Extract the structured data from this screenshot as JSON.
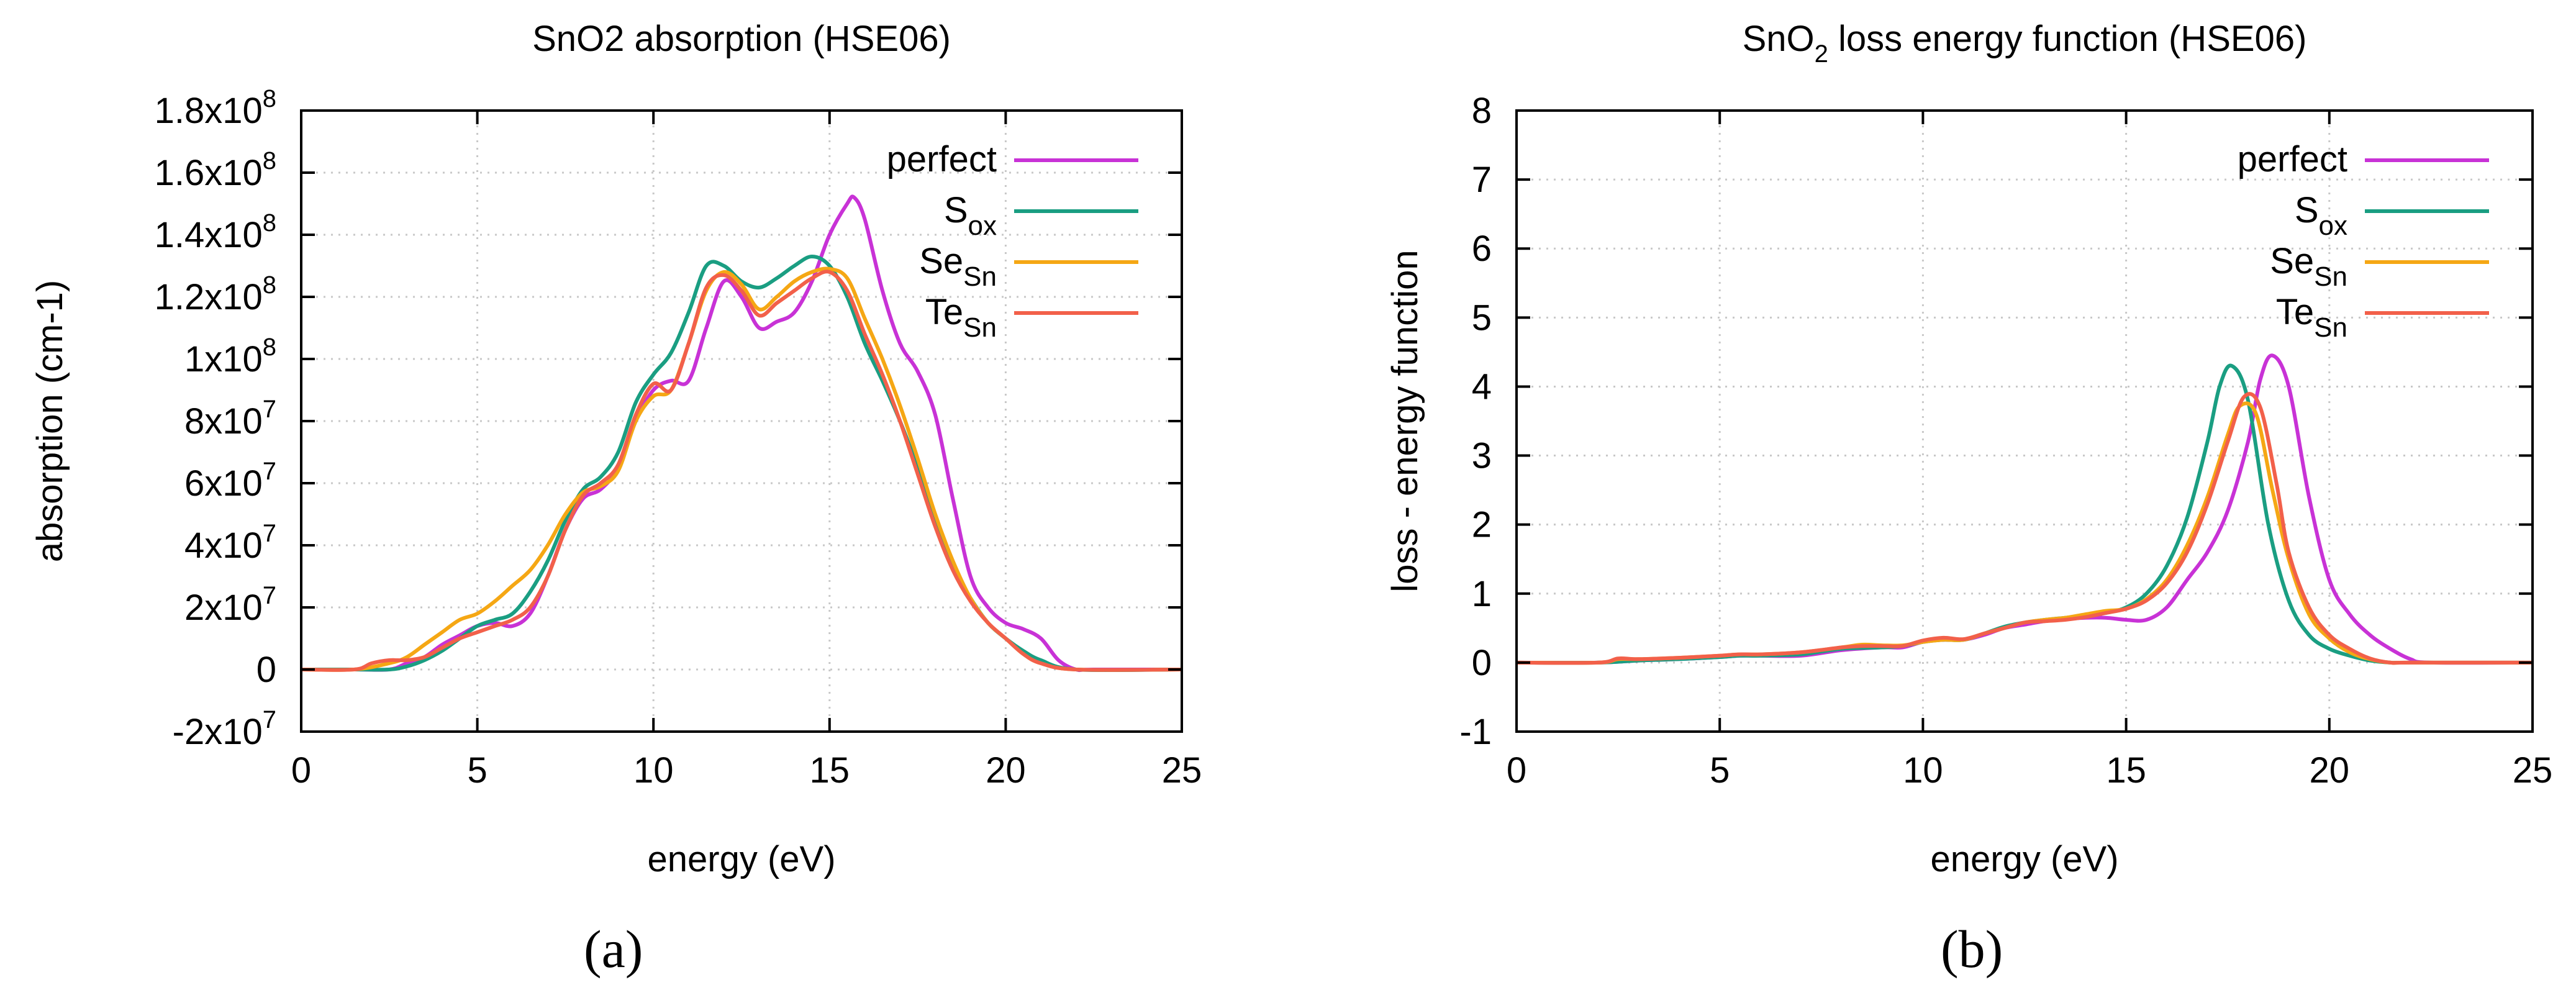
{
  "figure": {
    "panel_labels": [
      "(a)",
      "(b)"
    ]
  },
  "chart_data": [
    {
      "type": "line",
      "title": "SnO2 absorption (HSE06)",
      "xlabel": "energy (eV)",
      "ylabel": "absorption (cm-1)",
      "xlim": [
        0,
        25
      ],
      "ylim": [
        -20000000.0,
        180000000.0
      ],
      "x_ticks": [
        0,
        5,
        10,
        15,
        20,
        25
      ],
      "y_ticks": [
        {
          "value": -20000000.0,
          "mant": "-2x10",
          "exp": "7"
        },
        {
          "value": 0,
          "mant": "0",
          "exp": ""
        },
        {
          "value": 20000000.0,
          "mant": "2x10",
          "exp": "7"
        },
        {
          "value": 40000000.0,
          "mant": "4x10",
          "exp": "7"
        },
        {
          "value": 60000000.0,
          "mant": "6x10",
          "exp": "7"
        },
        {
          "value": 80000000.0,
          "mant": "8x10",
          "exp": "7"
        },
        {
          "value": 100000000.0,
          "mant": "1x10",
          "exp": "8"
        },
        {
          "value": 120000000.0,
          "mant": "1.2x10",
          "exp": "8"
        },
        {
          "value": 140000000.0,
          "mant": "1.4x10",
          "exp": "8"
        },
        {
          "value": 160000000.0,
          "mant": "1.6x10",
          "exp": "8"
        },
        {
          "value": 180000000.0,
          "mant": "1.8x10",
          "exp": "8"
        }
      ],
      "grid": true,
      "legend_position": "top-right",
      "series": [
        {
          "name": "perfect",
          "base": "perfect",
          "sub": "",
          "color": "#c832d6",
          "x": [
            0,
            1.5,
            2.5,
            3,
            3.5,
            4,
            4.5,
            5,
            5.5,
            6,
            6.5,
            7,
            7.5,
            8,
            8.5,
            9,
            9.5,
            10,
            10.5,
            11,
            11.5,
            12,
            12.5,
            13,
            13.5,
            14,
            14.5,
            15,
            15.5,
            15.7,
            16,
            16.5,
            17,
            17.5,
            18,
            18.5,
            19,
            19.5,
            20,
            20.5,
            21,
            21.5,
            22,
            22.5,
            25
          ],
          "y": [
            0,
            0,
            0,
            2000000.0,
            4000000.0,
            8000000.0,
            11000000.0,
            14000000.0,
            15000000.0,
            14000000.0,
            18000000.0,
            30000000.0,
            45000000.0,
            55000000.0,
            58000000.0,
            65000000.0,
            80000000.0,
            90000000.0,
            93000000.0,
            93000000.0,
            110000000.0,
            125000000.0,
            120000000.0,
            110000000.0,
            112000000.0,
            115000000.0,
            125000000.0,
            140000000.0,
            150000000.0,
            152000000.0,
            145000000.0,
            122000000.0,
            105000000.0,
            96000000.0,
            82000000.0,
            55000000.0,
            30000000.0,
            20000000.0,
            15000000.0,
            13000000.0,
            10000000.0,
            3000000.0,
            0,
            0,
            0
          ]
        },
        {
          "name": "Sox",
          "base": "S",
          "sub": "ox",
          "color": "#1a9e82",
          "x": [
            0,
            1.5,
            2.5,
            3,
            3.5,
            4,
            4.5,
            5,
            5.5,
            6,
            6.5,
            7,
            7.5,
            8,
            8.5,
            9,
            9.5,
            10,
            10.5,
            11,
            11.5,
            12,
            12.5,
            13,
            13.5,
            14,
            14.5,
            15,
            15.5,
            16,
            16.5,
            17,
            17.5,
            18,
            18.5,
            19,
            19.5,
            20,
            20.5,
            21,
            22,
            25
          ],
          "y": [
            0,
            0,
            0,
            1000000.0,
            3000000.0,
            6000000.0,
            10000000.0,
            14000000.0,
            16000000.0,
            18000000.0,
            25000000.0,
            35000000.0,
            48000000.0,
            58000000.0,
            62000000.0,
            70000000.0,
            86000000.0,
            95000000.0,
            102000000.0,
            115000000.0,
            130000000.0,
            130000000.0,
            125000000.0,
            123000000.0,
            126000000.0,
            130000000.0,
            133000000.0,
            130000000.0,
            120000000.0,
            105000000.0,
            93000000.0,
            80000000.0,
            65000000.0,
            48000000.0,
            33000000.0,
            23000000.0,
            15000000.0,
            10000000.0,
            6000000.0,
            3000000.0,
            0,
            0
          ]
        },
        {
          "name": "SeSn",
          "base": "Se",
          "sub": "Sn",
          "color": "#f5a714",
          "x": [
            0,
            1.5,
            2.5,
            3,
            3.5,
            4,
            4.5,
            5,
            5.5,
            6,
            6.5,
            7,
            7.5,
            8,
            8.5,
            9,
            9.5,
            10,
            10.5,
            11,
            11.5,
            12,
            12.5,
            13,
            13.5,
            14,
            14.5,
            15,
            15.5,
            16,
            16.5,
            17,
            17.5,
            18,
            18.5,
            19,
            19.5,
            20,
            20.5,
            21,
            22,
            25
          ],
          "y": [
            0,
            0,
            2000000.0,
            4000000.0,
            8000000.0,
            12000000.0,
            16000000.0,
            18000000.0,
            22000000.0,
            27000000.0,
            32000000.0,
            40000000.0,
            50000000.0,
            57000000.0,
            59000000.0,
            64000000.0,
            80000000.0,
            88000000.0,
            90000000.0,
            105000000.0,
            122000000.0,
            128000000.0,
            124000000.0,
            116000000.0,
            120000000.0,
            125000000.0,
            128000000.0,
            129000000.0,
            126000000.0,
            113000000.0,
            100000000.0,
            85000000.0,
            68000000.0,
            50000000.0,
            35000000.0,
            23000000.0,
            15000000.0,
            10000000.0,
            5000000.0,
            2000000.0,
            0,
            0
          ]
        },
        {
          "name": "TeSn",
          "base": "Te",
          "sub": "Sn",
          "color": "#f2604a",
          "x": [
            0,
            1.5,
            2,
            2.5,
            3,
            3.5,
            4,
            4.5,
            5,
            5.5,
            6,
            6.5,
            7,
            7.5,
            8,
            8.5,
            9,
            9.5,
            10,
            10.5,
            11,
            11.5,
            12,
            12.5,
            13,
            13.5,
            14,
            14.5,
            15,
            15.5,
            16,
            16.5,
            17,
            17.5,
            18,
            18.5,
            19,
            19.5,
            20,
            20.5,
            21,
            22,
            25
          ],
          "y": [
            0,
            0,
            2000000.0,
            3000000.0,
            3000000.0,
            4000000.0,
            7000000.0,
            10000000.0,
            12000000.0,
            14000000.0,
            16000000.0,
            20000000.0,
            30000000.0,
            45000000.0,
            56000000.0,
            60000000.0,
            66000000.0,
            82000000.0,
            92000000.0,
            90000000.0,
            105000000.0,
            123000000.0,
            127000000.0,
            122000000.0,
            114000000.0,
            118000000.0,
            122000000.0,
            126000000.0,
            128000000.0,
            122000000.0,
            108000000.0,
            95000000.0,
            80000000.0,
            63000000.0,
            46000000.0,
            32000000.0,
            22000000.0,
            15000000.0,
            10000000.0,
            5000000.0,
            2000000.0,
            0,
            0
          ]
        }
      ]
    },
    {
      "type": "line",
      "title_base": "SnO",
      "title_sub": "2",
      "title_rest": " loss energy function (HSE06)",
      "xlabel": "energy (eV)",
      "ylabel": "loss - energy function",
      "xlim": [
        0,
        25
      ],
      "ylim": [
        -1,
        8
      ],
      "x_ticks": [
        0,
        5,
        10,
        15,
        20,
        25
      ],
      "y_ticks": [
        -1,
        0,
        1,
        2,
        3,
        4,
        5,
        6,
        7,
        8
      ],
      "grid": true,
      "legend_position": "top-right",
      "series": [
        {
          "name": "perfect",
          "base": "perfect",
          "sub": "",
          "color": "#c832d6",
          "x": [
            0,
            2,
            3,
            4,
            5,
            5.5,
            6,
            7,
            8,
            9,
            9.5,
            10,
            10.5,
            11,
            11.5,
            12,
            12.5,
            13,
            13.5,
            14,
            14.5,
            15,
            15.5,
            16,
            16.5,
            17,
            17.5,
            18,
            18.3,
            18.6,
            19,
            19.5,
            20,
            20.5,
            21,
            21.5,
            22,
            22.5,
            25
          ],
          "y": [
            0,
            0,
            0.03,
            0.05,
            0.08,
            0.1,
            0.1,
            0.1,
            0.18,
            0.22,
            0.22,
            0.3,
            0.33,
            0.33,
            0.4,
            0.5,
            0.55,
            0.6,
            0.63,
            0.65,
            0.65,
            0.62,
            0.62,
            0.8,
            1.2,
            1.6,
            2.2,
            3.2,
            4.1,
            4.45,
            4,
            2.4,
            1.2,
            0.7,
            0.4,
            0.2,
            0.05,
            0,
            0
          ]
        },
        {
          "name": "Sox",
          "base": "S",
          "sub": "ox",
          "color": "#1a9e82",
          "x": [
            0,
            2,
            3,
            4,
            5,
            5.5,
            6,
            7,
            8,
            9,
            9.5,
            10,
            10.5,
            11,
            11.5,
            12,
            12.5,
            13,
            13.5,
            14,
            14.5,
            15,
            15.5,
            16,
            16.5,
            17,
            17.3,
            17.6,
            18,
            18.5,
            19,
            19.5,
            20,
            20.5,
            21,
            21.5,
            22,
            25
          ],
          "y": [
            0,
            0,
            0.03,
            0.05,
            0.08,
            0.1,
            0.1,
            0.12,
            0.2,
            0.22,
            0.24,
            0.3,
            0.33,
            0.33,
            0.42,
            0.52,
            0.58,
            0.62,
            0.65,
            0.68,
            0.72,
            0.8,
            1.0,
            1.4,
            2.1,
            3.2,
            4.0,
            4.3,
            3.8,
            2.0,
            0.9,
            0.4,
            0.2,
            0.1,
            0.03,
            0,
            0,
            0
          ]
        },
        {
          "name": "SeSn",
          "base": "Se",
          "sub": "Sn",
          "color": "#f5a714",
          "x": [
            0,
            2,
            2.5,
            3,
            4,
            5,
            5.5,
            6,
            7,
            8,
            8.5,
            9,
            9.5,
            10,
            10.5,
            11,
            11.5,
            12,
            12.5,
            13,
            13.5,
            14,
            14.5,
            15,
            15.5,
            16,
            16.5,
            17,
            17.5,
            17.8,
            18.2,
            18.6,
            19,
            19.5,
            20,
            20.5,
            21,
            21.5,
            22,
            25
          ],
          "y": [
            0,
            0,
            0.05,
            0.05,
            0.07,
            0.1,
            0.12,
            0.12,
            0.15,
            0.22,
            0.26,
            0.25,
            0.25,
            0.3,
            0.33,
            0.33,
            0.42,
            0.5,
            0.58,
            0.62,
            0.65,
            0.7,
            0.75,
            0.78,
            0.92,
            1.2,
            1.7,
            2.4,
            3.3,
            3.72,
            3.6,
            2.5,
            1.5,
            0.7,
            0.35,
            0.15,
            0.05,
            0,
            0,
            0
          ]
        },
        {
          "name": "TeSn",
          "base": "Te",
          "sub": "Sn",
          "color": "#f2604a",
          "x": [
            0,
            2,
            2.5,
            3,
            4,
            5,
            5.5,
            6,
            7,
            8,
            8.5,
            9,
            9.5,
            10,
            10.5,
            11,
            11.5,
            12,
            12.5,
            13,
            13.5,
            14,
            14.5,
            15,
            15.5,
            16,
            16.5,
            17,
            17.5,
            17.9,
            18.3,
            18.7,
            19,
            19.5,
            20,
            20.5,
            21,
            21.5,
            22,
            25
          ],
          "y": [
            0,
            0,
            0.06,
            0.05,
            0.07,
            0.1,
            0.12,
            0.12,
            0.15,
            0.22,
            0.24,
            0.24,
            0.24,
            0.32,
            0.36,
            0.34,
            0.42,
            0.5,
            0.58,
            0.6,
            0.62,
            0.66,
            0.72,
            0.78,
            0.9,
            1.15,
            1.6,
            2.3,
            3.2,
            3.85,
            3.7,
            2.6,
            1.6,
            0.8,
            0.4,
            0.2,
            0.06,
            0,
            0,
            0
          ]
        }
      ]
    }
  ]
}
